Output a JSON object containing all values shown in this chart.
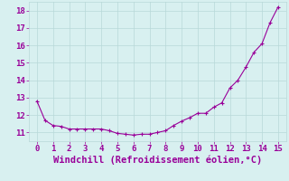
{
  "x": [
    0,
    0.5,
    1,
    1.5,
    2,
    2.5,
    3,
    3.5,
    4,
    4.5,
    5,
    5.5,
    6,
    6.5,
    7,
    7.5,
    8,
    8.5,
    9,
    9.5,
    10,
    10.5,
    11,
    11.5,
    12,
    12.5,
    13,
    13.5,
    14,
    14.5,
    15
  ],
  "y": [
    12.8,
    11.7,
    11.4,
    11.35,
    11.2,
    11.2,
    11.2,
    11.2,
    11.2,
    11.1,
    10.95,
    10.9,
    10.85,
    10.9,
    10.9,
    11.0,
    11.1,
    11.4,
    11.65,
    11.85,
    12.1,
    12.1,
    12.45,
    12.7,
    13.55,
    14.0,
    14.75,
    15.6,
    16.1,
    17.3,
    18.2
  ],
  "line_color": "#990099",
  "marker": "+",
  "marker_size": 3,
  "xlabel": "Windchill (Refroidissement éolien,°C)",
  "xlabel_fontsize": 7.5,
  "xlim": [
    -0.5,
    15.5
  ],
  "ylim": [
    10.5,
    18.5
  ],
  "xticks": [
    0,
    1,
    2,
    3,
    4,
    5,
    6,
    7,
    8,
    9,
    10,
    11,
    12,
    13,
    14,
    15
  ],
  "yticks": [
    11,
    12,
    13,
    14,
    15,
    16,
    17,
    18
  ],
  "grid_color": "#b8d8d8",
  "background_color": "#d8f0f0",
  "tick_fontsize": 6.5,
  "fig_bg": "#d8f0f0"
}
